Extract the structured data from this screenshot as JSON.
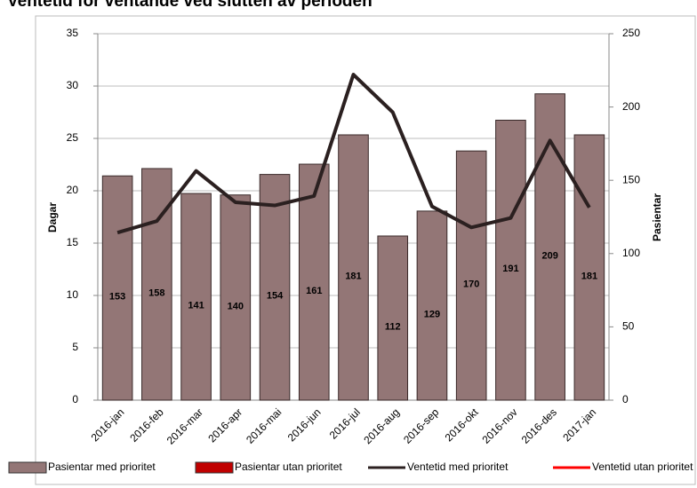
{
  "chart_data": {
    "type": "combo",
    "title": "Ventetid for ventande ved slutten av perioden",
    "y_label": "Dagar",
    "y2_label": "Pasientar",
    "categories": [
      "2016-jan",
      "2016-feb",
      "2016-mar",
      "2016-apr",
      "2016-mai",
      "2016-jun",
      "2016-jul",
      "2016-aug",
      "2016-sep",
      "2016-okt",
      "2016-nov",
      "2016-des",
      "2017-jan"
    ],
    "ylim": [
      0,
      35
    ],
    "yticks": [
      0,
      5,
      10,
      15,
      20,
      25,
      30,
      35
    ],
    "y2lim": [
      0,
      250
    ],
    "y2ticks": [
      0,
      50,
      100,
      150,
      200,
      250
    ],
    "grid": true,
    "legend": "bottom",
    "series": [
      {
        "name": "Pasientar med prioritet",
        "type": "bar",
        "axis": "y2",
        "color": "#937676",
        "values": [
          153,
          158,
          141,
          140,
          154,
          161,
          181,
          112,
          129,
          170,
          191,
          209,
          181
        ]
      },
      {
        "name": "Pasientar utan prioritet",
        "type": "bar",
        "axis": "y2",
        "color": "#c00000",
        "values": [
          null,
          null,
          null,
          null,
          null,
          null,
          null,
          null,
          null,
          null,
          null,
          null,
          null
        ]
      },
      {
        "name": "Ventetid med prioritet",
        "type": "line",
        "color": "#2b2020",
        "values": [
          16.0,
          17.1,
          21.9,
          18.9,
          18.6,
          19.5,
          31.1,
          27.5,
          18.5,
          16.5,
          17.4,
          24.8,
          18.4
        ]
      },
      {
        "name": "Ventetid utan prioritet",
        "type": "line",
        "color": "#ff0000",
        "values": [
          null,
          null,
          null,
          null,
          null,
          null,
          null,
          null,
          null,
          null,
          null,
          null,
          null
        ]
      }
    ]
  }
}
